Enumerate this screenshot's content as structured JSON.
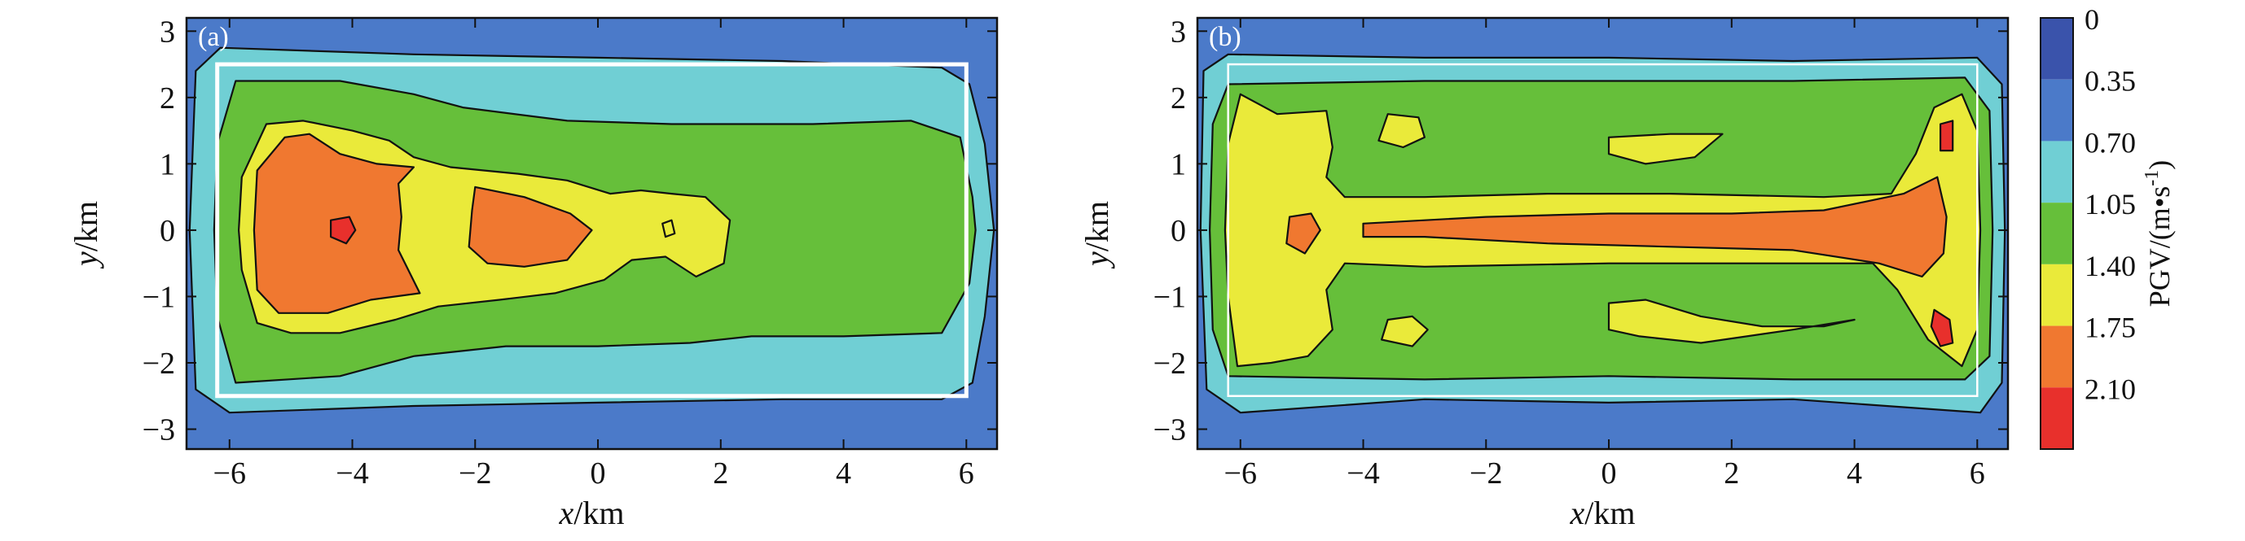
{
  "chart_data": [
    {
      "panel": "(a)",
      "type": "heatmap",
      "xlabel_var": "x",
      "xlabel_unit": "/km",
      "ylabel_var": "y",
      "ylabel_unit": "/km",
      "xlim": [
        -6.7,
        6.5
      ],
      "ylim": [
        -3.3,
        3.2
      ],
      "xticks": [
        -6,
        -4,
        -2,
        0,
        2,
        4,
        6
      ],
      "yticks": [
        3,
        2,
        1,
        0,
        -1,
        -2,
        -3
      ],
      "rupture_box": {
        "x": [
          -6.2,
          6.0
        ],
        "y": [
          -2.5,
          2.5
        ]
      },
      "contours": [
        {
          "level": 0.7,
          "points": [
            [
              -6.15,
              2.75
            ],
            [
              -3,
              2.65
            ],
            [
              0,
              2.6
            ],
            [
              3,
              2.55
            ],
            [
              5.6,
              2.45
            ],
            [
              6.05,
              2.2
            ],
            [
              6.3,
              1.3
            ],
            [
              6.45,
              0
            ],
            [
              6.3,
              -1.3
            ],
            [
              6.1,
              -2.3
            ],
            [
              5.6,
              -2.55
            ],
            [
              3,
              -2.55
            ],
            [
              0,
              -2.6
            ],
            [
              -3,
              -2.65
            ],
            [
              -6,
              -2.75
            ],
            [
              -6.55,
              -2.4
            ],
            [
              -6.65,
              0
            ],
            [
              -6.55,
              2.4
            ]
          ]
        },
        {
          "level": 1.05,
          "points": [
            [
              -5.9,
              2.25
            ],
            [
              -4.2,
              2.25
            ],
            [
              -3,
              2.05
            ],
            [
              -2.2,
              1.85
            ],
            [
              -0.5,
              1.65
            ],
            [
              1.2,
              1.6
            ],
            [
              3.5,
              1.6
            ],
            [
              5.1,
              1.65
            ],
            [
              5.9,
              1.4
            ],
            [
              6.1,
              0.5
            ],
            [
              6.15,
              0
            ],
            [
              6.05,
              -0.8
            ],
            [
              5.6,
              -1.55
            ],
            [
              4,
              -1.6
            ],
            [
              2.5,
              -1.6
            ],
            [
              1.5,
              -1.7
            ],
            [
              0,
              -1.75
            ],
            [
              -1.5,
              -1.75
            ],
            [
              -3,
              -1.9
            ],
            [
              -4.2,
              -2.2
            ],
            [
              -5.9,
              -2.3
            ],
            [
              -6.2,
              -1.3
            ],
            [
              -6.25,
              0
            ],
            [
              -6.2,
              1.3
            ]
          ]
        },
        {
          "level": 1.4,
          "points": [
            [
              -5.4,
              1.6
            ],
            [
              -4.8,
              1.65
            ],
            [
              -4,
              1.5
            ],
            [
              -3.4,
              1.35
            ],
            [
              -3,
              1.1
            ],
            [
              -2.4,
              0.95
            ],
            [
              -1.3,
              0.85
            ],
            [
              -0.5,
              0.75
            ],
            [
              0.2,
              0.55
            ],
            [
              0.7,
              0.6
            ],
            [
              1.2,
              0.55
            ],
            [
              1.75,
              0.5
            ],
            [
              2.15,
              0.15
            ],
            [
              2.05,
              -0.5
            ],
            [
              1.6,
              -0.7
            ],
            [
              1.1,
              -0.4
            ],
            [
              0.55,
              -0.45
            ],
            [
              0.1,
              -0.75
            ],
            [
              -0.7,
              -0.95
            ],
            [
              -1.6,
              -1.05
            ],
            [
              -2.6,
              -1.15
            ],
            [
              -3.3,
              -1.35
            ],
            [
              -4.2,
              -1.55
            ],
            [
              -5,
              -1.55
            ],
            [
              -5.55,
              -1.4
            ],
            [
              -5.8,
              -0.6
            ],
            [
              -5.85,
              0
            ],
            [
              -5.8,
              0.8
            ]
          ]
        },
        {
          "level": 1.75,
          "points": [
            [
              -5.1,
              1.4
            ],
            [
              -4.7,
              1.45
            ],
            [
              -4.2,
              1.15
            ],
            [
              -3.6,
              1
            ],
            [
              -3.0,
              0.95
            ],
            [
              -3.25,
              0.7
            ],
            [
              -3.2,
              0.2
            ],
            [
              -3.25,
              -0.3
            ],
            [
              -2.9,
              -0.95
            ],
            [
              -3.7,
              -1.05
            ],
            [
              -4.4,
              -1.25
            ],
            [
              -5.2,
              -1.25
            ],
            [
              -5.55,
              -0.9
            ],
            [
              -5.6,
              0
            ],
            [
              -5.55,
              0.9
            ]
          ]
        },
        {
          "level": 1.75,
          "points": [
            [
              -2.0,
              0.65
            ],
            [
              -1.2,
              0.5
            ],
            [
              -0.45,
              0.25
            ],
            [
              -0.1,
              0
            ],
            [
              -0.5,
              -0.45
            ],
            [
              -1.2,
              -0.55
            ],
            [
              -1.8,
              -0.5
            ],
            [
              -2.1,
              -0.25
            ],
            [
              -2.05,
              0.3
            ]
          ]
        },
        {
          "level": 2.1,
          "points": [
            [
              -4.35,
              0.15
            ],
            [
              -4.05,
              0.2
            ],
            [
              -3.95,
              0
            ],
            [
              -4.1,
              -0.2
            ],
            [
              -4.35,
              -0.1
            ]
          ]
        },
        {
          "level": 1.4,
          "points": [
            [
              1.05,
              0.1
            ],
            [
              1.2,
              0.15
            ],
            [
              1.25,
              -0.05
            ],
            [
              1.1,
              -0.1
            ]
          ]
        }
      ]
    },
    {
      "panel": "(b)",
      "type": "heatmap",
      "xlabel_var": "x",
      "xlabel_unit": "/km",
      "ylabel_var": "y",
      "ylabel_unit": "/km",
      "xlim": [
        -6.7,
        6.5
      ],
      "ylim": [
        -3.3,
        3.2
      ],
      "xticks": [
        -6,
        -4,
        -2,
        0,
        2,
        4,
        6
      ],
      "yticks": [
        3,
        2,
        1,
        0,
        -1,
        -2,
        -3
      ],
      "rupture_box": {
        "x": [
          -6.2,
          6.0
        ],
        "y": [
          -2.5,
          2.5
        ]
      },
      "contours": [
        {
          "level": 0.7,
          "points": [
            [
              -6.2,
              2.65
            ],
            [
              -3,
              2.6
            ],
            [
              0,
              2.6
            ],
            [
              3,
              2.55
            ],
            [
              6,
              2.6
            ],
            [
              6.4,
              2.2
            ],
            [
              6.45,
              0
            ],
            [
              6.4,
              -2.3
            ],
            [
              6.05,
              -2.75
            ],
            [
              3,
              -2.55
            ],
            [
              0,
              -2.6
            ],
            [
              -3,
              -2.55
            ],
            [
              -6,
              -2.75
            ],
            [
              -6.55,
              -2.4
            ],
            [
              -6.65,
              0
            ],
            [
              -6.6,
              2.4
            ]
          ]
        },
        {
          "level": 1.05,
          "points": [
            [
              -6.2,
              2.2
            ],
            [
              -3,
              2.25
            ],
            [
              0,
              2.25
            ],
            [
              3,
              2.25
            ],
            [
              5.8,
              2.3
            ],
            [
              6.2,
              1.8
            ],
            [
              6.25,
              0
            ],
            [
              6.2,
              -1.9
            ],
            [
              5.8,
              -2.25
            ],
            [
              3,
              -2.25
            ],
            [
              0,
              -2.2
            ],
            [
              -3,
              -2.25
            ],
            [
              -6.2,
              -2.2
            ],
            [
              -6.45,
              -1.5
            ],
            [
              -6.5,
              0
            ],
            [
              -6.45,
              1.6
            ]
          ]
        },
        {
          "level": 1.4,
          "points": [
            [
              -6.0,
              2.05
            ],
            [
              -5.4,
              1.75
            ],
            [
              -4.6,
              1.8
            ],
            [
              -4.5,
              1.25
            ],
            [
              -4.6,
              0.8
            ],
            [
              -4.3,
              0.5
            ],
            [
              -3,
              0.5
            ],
            [
              -1,
              0.55
            ],
            [
              1,
              0.55
            ],
            [
              3.5,
              0.5
            ],
            [
              4.6,
              0.55
            ],
            [
              5,
              1.15
            ],
            [
              5.3,
              1.85
            ],
            [
              5.75,
              2.05
            ],
            [
              6,
              1.5
            ],
            [
              6.05,
              0
            ],
            [
              6,
              -1.5
            ],
            [
              5.75,
              -2.05
            ],
            [
              5.2,
              -1.65
            ],
            [
              4.7,
              -0.9
            ],
            [
              4.3,
              -0.5
            ],
            [
              3,
              -0.5
            ],
            [
              0,
              -0.5
            ],
            [
              -3,
              -0.55
            ],
            [
              -4.3,
              -0.5
            ],
            [
              -4.6,
              -0.9
            ],
            [
              -4.5,
              -1.5
            ],
            [
              -4.9,
              -1.9
            ],
            [
              -5.5,
              -2.0
            ],
            [
              -6.05,
              -2.05
            ],
            [
              -6.2,
              -1
            ],
            [
              -6.25,
              0
            ],
            [
              -6.2,
              1.3
            ]
          ]
        },
        {
          "level": 1.75,
          "points": [
            [
              -5.2,
              0.2
            ],
            [
              -4.85,
              0.25
            ],
            [
              -4.7,
              0
            ],
            [
              -4.95,
              -0.35
            ],
            [
              -5.25,
              -0.2
            ]
          ]
        },
        {
          "level": 1.75,
          "points": [
            [
              -4,
              0.1
            ],
            [
              -2,
              0.2
            ],
            [
              0,
              0.25
            ],
            [
              2,
              0.25
            ],
            [
              3.5,
              0.3
            ],
            [
              4.8,
              0.55
            ],
            [
              5.35,
              0.8
            ],
            [
              5.5,
              0.2
            ],
            [
              5.45,
              -0.35
            ],
            [
              5.1,
              -0.7
            ],
            [
              4.4,
              -0.5
            ],
            [
              3,
              -0.3
            ],
            [
              1,
              -0.25
            ],
            [
              -1,
              -0.2
            ],
            [
              -3,
              -0.1
            ],
            [
              -4,
              -0.1
            ]
          ]
        },
        {
          "level": 1.4,
          "points": [
            [
              -3.6,
              1.75
            ],
            [
              -3.1,
              1.7
            ],
            [
              -3.0,
              1.4
            ],
            [
              -3.35,
              1.25
            ],
            [
              -3.75,
              1.35
            ]
          ]
        },
        {
          "level": 1.4,
          "points": [
            [
              -3.6,
              -1.35
            ],
            [
              -3.2,
              -1.3
            ],
            [
              -2.95,
              -1.5
            ],
            [
              -3.2,
              -1.75
            ],
            [
              -3.7,
              -1.65
            ]
          ]
        },
        {
          "level": 1.4,
          "points": [
            [
              0,
              1.4
            ],
            [
              1,
              1.45
            ],
            [
              1.85,
              1.45
            ],
            [
              1.4,
              1.1
            ],
            [
              0.6,
              1.0
            ],
            [
              0,
              1.15
            ]
          ]
        },
        {
          "level": 1.4,
          "points": [
            [
              0,
              -1.1
            ],
            [
              0.6,
              -1.05
            ],
            [
              1.5,
              -1.3
            ],
            [
              2.5,
              -1.45
            ],
            [
              3.5,
              -1.45
            ],
            [
              4.0,
              -1.35
            ],
            [
              3.0,
              -1.5
            ],
            [
              1.5,
              -1.7
            ],
            [
              0.5,
              -1.6
            ],
            [
              0,
              -1.5
            ]
          ]
        },
        {
          "level": 2.1,
          "points": [
            [
              5.4,
              1.6
            ],
            [
              5.6,
              1.65
            ],
            [
              5.6,
              1.2
            ],
            [
              5.4,
              1.2
            ]
          ]
        },
        {
          "level": 2.1,
          "points": [
            [
              5.3,
              -1.2
            ],
            [
              5.55,
              -1.35
            ],
            [
              5.6,
              -1.7
            ],
            [
              5.4,
              -1.75
            ],
            [
              5.25,
              -1.45
            ]
          ]
        }
      ]
    }
  ],
  "colorbar": {
    "label": "PGV/(m•s",
    "label_sup": "-1",
    "label_close": ")",
    "tick_labels": [
      "0",
      "0.35",
      "0.70",
      "1.05",
      "1.40",
      "1.75",
      "2.10"
    ],
    "levels": [
      0,
      0.35,
      0.7,
      1.05,
      1.4,
      1.75,
      2.1,
      2.45
    ],
    "colors": [
      "#3a53ab",
      "#4b7ac9",
      "#70cfd4",
      "#66bf3a",
      "#eaea3a",
      "#f07830",
      "#e8302c"
    ]
  }
}
